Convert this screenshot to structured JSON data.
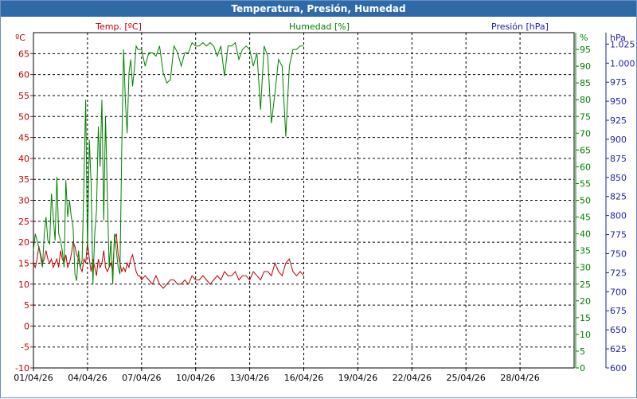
{
  "window": {
    "title": "Temperatura, Presión, Humedad"
  },
  "colors": {
    "temp": "#c00000",
    "humidity": "#008000",
    "pressure": "#1f1fa8",
    "grid": "#000000"
  },
  "chart_data": {
    "type": "line",
    "title": "Temperatura, Presión, Humedad",
    "x_ticks": [
      "01/04/26",
      "04/04/26",
      "07/04/26",
      "10/04/26",
      "13/04/26",
      "16/04/26",
      "19/04/26",
      "22/04/26",
      "25/04/26",
      "28/04/26"
    ],
    "x_range_days": [
      1,
      31
    ],
    "grid": true,
    "axes": {
      "temp": {
        "label": "Temp. [ºC]",
        "unit": "ºC",
        "range": [
          -10,
          70
        ],
        "ticks": [
          "-10",
          "-5",
          "0",
          "5",
          "10",
          "15",
          "20",
          "25",
          "30",
          "35",
          "40",
          "45",
          "50",
          "55",
          "60",
          "65"
        ]
      },
      "humidity": {
        "label": "Humedad [%]",
        "unit": "%",
        "range": [
          0,
          100
        ],
        "ticks": [
          "0",
          "5",
          "10",
          "15",
          "20",
          "25",
          "30",
          "35",
          "40",
          "45",
          "50",
          "55",
          "60",
          "65",
          "70",
          "75",
          "80",
          "85",
          "90",
          "95"
        ]
      },
      "pressure": {
        "label": "Presión [hPa]",
        "unit": "hPa",
        "range": [
          600,
          1040
        ],
        "ticks": [
          "600",
          "625",
          "650",
          "675",
          "700",
          "725",
          "750",
          "775",
          "800",
          "825",
          "850",
          "875",
          "900",
          "925",
          "950",
          "975",
          "1.000",
          "1.025"
        ]
      }
    },
    "series": [
      {
        "name": "Temp. [ºC]",
        "axis": "temp",
        "x": [
          1.0,
          1.1,
          1.2,
          1.3,
          1.4,
          1.5,
          1.6,
          1.7,
          1.8,
          1.9,
          2.0,
          2.1,
          2.2,
          2.3,
          2.4,
          2.5,
          2.6,
          2.7,
          2.8,
          2.9,
          3.0,
          3.1,
          3.2,
          3.3,
          3.4,
          3.5,
          3.6,
          3.7,
          3.8,
          3.9,
          4.0,
          4.1,
          4.2,
          4.3,
          4.4,
          4.5,
          4.6,
          4.7,
          4.8,
          4.9,
          5.0,
          5.1,
          5.2,
          5.3,
          5.4,
          5.5,
          5.6,
          5.7,
          5.8,
          5.9,
          6.0,
          6.1,
          6.2,
          6.3,
          6.4,
          6.5,
          6.6,
          6.7,
          6.8,
          6.9,
          7.0,
          7.2,
          7.4,
          7.6,
          7.8,
          8.0,
          8.2,
          8.4,
          8.6,
          8.8,
          9.0,
          9.2,
          9.4,
          9.6,
          9.8,
          10.0,
          10.2,
          10.4,
          10.6,
          10.8,
          11.0,
          11.2,
          11.4,
          11.6,
          11.8,
          12.0,
          12.2,
          12.4,
          12.6,
          12.8,
          13.0,
          13.2,
          13.4,
          13.6,
          13.8,
          14.0,
          14.2,
          14.4,
          14.6,
          14.8,
          15.0,
          15.2,
          15.4,
          15.6,
          15.8,
          16.0
        ],
        "y": [
          15,
          14,
          16,
          19,
          17,
          15,
          16,
          18,
          16,
          15,
          16,
          14,
          15,
          16,
          14,
          18,
          16,
          15,
          17,
          14,
          15,
          17,
          20,
          19,
          17,
          16,
          14,
          13,
          16,
          15,
          20,
          16,
          13,
          16,
          14,
          12,
          16,
          14,
          15,
          18,
          14,
          13,
          14,
          15,
          13,
          21,
          22,
          17,
          15,
          13,
          14,
          13,
          15,
          14,
          16,
          17,
          15,
          13,
          12,
          12,
          11,
          12,
          11,
          10,
          12,
          10,
          9,
          10,
          11,
          11,
          10,
          10,
          11,
          10,
          12,
          11,
          11,
          12,
          11,
          10,
          11,
          12,
          11,
          13,
          12,
          12,
          13,
          11,
          12,
          12,
          11,
          13,
          12,
          11,
          13,
          13,
          12,
          15,
          13,
          12,
          15,
          16,
          13,
          12,
          13,
          12
        ]
      },
      {
        "name": "Humedad [%]",
        "axis": "humidity",
        "x": [
          1.0,
          1.1,
          1.2,
          1.3,
          1.4,
          1.5,
          1.6,
          1.7,
          1.8,
          1.9,
          2.0,
          2.1,
          2.2,
          2.3,
          2.4,
          2.5,
          2.6,
          2.7,
          2.8,
          2.9,
          3.0,
          3.1,
          3.2,
          3.3,
          3.4,
          3.5,
          3.6,
          3.7,
          3.8,
          3.9,
          4.0,
          4.1,
          4.2,
          4.3,
          4.4,
          4.5,
          4.6,
          4.7,
          4.8,
          4.9,
          5.0,
          5.1,
          5.2,
          5.3,
          5.4,
          5.5,
          5.6,
          5.7,
          5.8,
          5.9,
          6.0,
          6.1,
          6.2,
          6.3,
          6.4,
          6.5,
          6.6,
          6.7,
          6.8,
          6.9,
          7.0,
          7.2,
          7.4,
          7.6,
          7.8,
          8.0,
          8.2,
          8.4,
          8.6,
          8.8,
          9.0,
          9.2,
          9.4,
          9.6,
          9.8,
          10.0,
          10.2,
          10.4,
          10.6,
          10.8,
          11.0,
          11.2,
          11.4,
          11.6,
          11.8,
          12.0,
          12.2,
          12.4,
          12.6,
          12.8,
          13.0,
          13.2,
          13.4,
          13.6,
          13.8,
          14.0,
          14.2,
          14.4,
          14.6,
          14.8,
          15.0,
          15.2,
          15.4,
          15.6,
          15.8,
          16.0
        ],
        "y": [
          35,
          40,
          38,
          36,
          33,
          30,
          40,
          45,
          38,
          37,
          52,
          45,
          38,
          57,
          40,
          38,
          35,
          30,
          56,
          45,
          50,
          45,
          42,
          28,
          26,
          35,
          30,
          32,
          55,
          80,
          35,
          68,
          55,
          25,
          40,
          47,
          72,
          60,
          80,
          44,
          75,
          52,
          30,
          38,
          25,
          40,
          35,
          30,
          28,
          65,
          95,
          80,
          70,
          88,
          92,
          84,
          89,
          96,
          95,
          95,
          95,
          90,
          94,
          94,
          93,
          96,
          88,
          85,
          86,
          96,
          94,
          90,
          94,
          94,
          97,
          96,
          96,
          97,
          96,
          97,
          96,
          93,
          96,
          87,
          96,
          96,
          97,
          92,
          95,
          96,
          95,
          90,
          94,
          77,
          96,
          93,
          73,
          82,
          92,
          90,
          69,
          90,
          95,
          95,
          96,
          96
        ]
      },
      {
        "name": "Presión [hPa]",
        "axis": "pressure",
        "x": [],
        "y": []
      }
    ]
  }
}
